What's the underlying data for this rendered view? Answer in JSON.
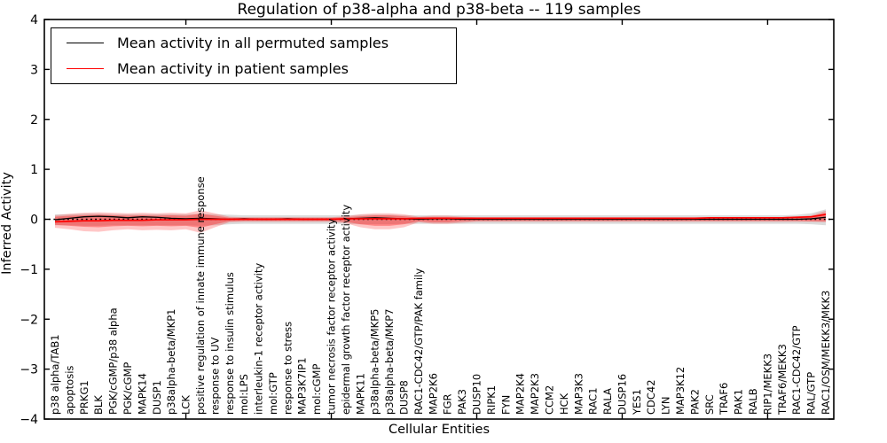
{
  "chart_data": {
    "type": "line",
    "title": "Regulation of p38-alpha and p38-beta -- 119 samples",
    "xlabel": "Cellular Entities",
    "ylabel": "Inferred Activity",
    "ylim": [
      -4,
      4
    ],
    "yticks": [
      -4,
      -3,
      -2,
      -1,
      0,
      1,
      2,
      3,
      4
    ],
    "xtick_indices": [
      9,
      19,
      29,
      39,
      49
    ],
    "grid": false,
    "zero_line": {
      "value": 0,
      "style": "dotted",
      "color": "#000000"
    },
    "categories": [
      "p38 alpha/TAB1",
      "apoptosis",
      "PRKG1",
      "BLK",
      "PGK/cGMP/p38 alpha",
      "PGK/cGMP",
      "MAPK14",
      "DUSP1",
      "p38alpha-beta/MKP1",
      "LCK",
      "positive regulation of innate immune response",
      "response to UV",
      "response to insulin stimulus",
      "mol:LPS",
      "interleukin-1 receptor activity",
      "mol:GTP",
      "response to stress",
      "MAP3K7IP1",
      "mol:cGMP",
      "tumor necrosis factor receptor activity",
      "epidermal growth factor receptor activity",
      "MAPK11",
      "p38alpha-beta/MKP5",
      "p38alpha-beta/MKP7",
      "DUSP8",
      "RAC1-CDC42/GTP/PAK family",
      "MAP2K6",
      "FGR",
      "PAK3",
      "DUSP10",
      "RIPK1",
      "FYN",
      "MAP2K4",
      "MAP2K3",
      "CCM2",
      "HCK",
      "MAP3K3",
      "RAC1",
      "RALA",
      "DUSP16",
      "YES1",
      "CDC42",
      "LYN",
      "MAP3K12",
      "PAK2",
      "SRC",
      "TRAF6",
      "PAK1",
      "RALB",
      "RIP1/MEKK3",
      "TRAF6/MEKK3",
      "RAC1-CDC42/GTP",
      "RAL/GTP",
      "RAC1/OSM/MEKK3/MKK3"
    ],
    "series": [
      {
        "name": "Mean activity in all permuted samples",
        "color": "#000000",
        "values": [
          -0.01,
          0.02,
          0.05,
          0.06,
          0.05,
          0.03,
          0.05,
          0.04,
          0.02,
          0.01,
          0.02,
          0.01,
          0,
          0.01,
          0,
          0,
          0.01,
          0,
          0,
          0,
          0.01,
          0.02,
          0.03,
          0.02,
          0.01,
          0,
          0.01,
          0.01,
          0,
          0,
          0,
          0,
          0,
          0,
          0,
          0,
          0,
          0,
          0,
          0,
          0,
          0,
          0,
          0,
          0,
          0,
          0,
          0,
          0,
          0,
          0,
          0,
          0.01,
          0.04
        ]
      },
      {
        "name": "Mean activity in patient samples",
        "color": "#ff0000",
        "values": [
          -0.05,
          -0.04,
          -0.03,
          -0.03,
          -0.02,
          -0.02,
          -0.02,
          -0.01,
          -0.01,
          -0.01,
          0,
          0,
          0,
          0,
          0,
          0,
          0,
          0,
          0,
          0,
          0.01,
          0.01,
          0.01,
          0.01,
          0.01,
          0.02,
          0.02,
          0.02,
          0.02,
          0.02,
          0.02,
          0.02,
          0.02,
          0.02,
          0.02,
          0.02,
          0.02,
          0.02,
          0.02,
          0.02,
          0.02,
          0.02,
          0.02,
          0.02,
          0.02,
          0.03,
          0.03,
          0.03,
          0.03,
          0.03,
          0.03,
          0.04,
          0.05,
          0.1
        ]
      }
    ],
    "bands": [
      {
        "name": "permuted-sample-spread",
        "color": "rgba(0,0,0,0.14)",
        "upper": [
          0.1,
          0.1,
          0.11,
          0.11,
          0.1,
          0.1,
          0.1,
          0.1,
          0.1,
          0.1,
          0.11,
          0.1,
          0.09,
          0.08,
          0.08,
          0.08,
          0.08,
          0.08,
          0.08,
          0.08,
          0.08,
          0.09,
          0.09,
          0.09,
          0.08,
          0.08,
          0.08,
          0.08,
          0.08,
          0.08,
          0.08,
          0.08,
          0.08,
          0.08,
          0.08,
          0.08,
          0.08,
          0.08,
          0.08,
          0.08,
          0.08,
          0.08,
          0.08,
          0.08,
          0.08,
          0.08,
          0.08,
          0.08,
          0.08,
          0.08,
          0.08,
          0.09,
          0.12,
          0.2
        ],
        "lower": [
          -0.12,
          -0.12,
          -0.13,
          -0.13,
          -0.12,
          -0.12,
          -0.12,
          -0.12,
          -0.12,
          -0.12,
          -0.13,
          -0.12,
          -0.1,
          -0.09,
          -0.09,
          -0.09,
          -0.09,
          -0.09,
          -0.09,
          -0.09,
          -0.09,
          -0.1,
          -0.1,
          -0.1,
          -0.09,
          -0.09,
          -0.09,
          -0.09,
          -0.09,
          -0.09,
          -0.09,
          -0.09,
          -0.09,
          -0.09,
          -0.09,
          -0.09,
          -0.09,
          -0.09,
          -0.09,
          -0.09,
          -0.09,
          -0.09,
          -0.09,
          -0.09,
          -0.09,
          -0.09,
          -0.09,
          -0.09,
          -0.09,
          -0.09,
          -0.09,
          -0.09,
          -0.1,
          -0.12
        ]
      },
      {
        "name": "patient-sample-spread-outer",
        "color": "rgba(255,30,30,0.25)",
        "upper": [
          0.08,
          0.11,
          0.13,
          0.14,
          0.13,
          0.12,
          0.13,
          0.12,
          0.13,
          0.12,
          0.18,
          0.12,
          0.05,
          0.04,
          0.04,
          0.04,
          0.04,
          0.04,
          0.04,
          0.04,
          0.06,
          0.1,
          0.12,
          0.12,
          0.1,
          0.05,
          0.07,
          0.07,
          0.05,
          0.04,
          0.04,
          0.04,
          0.04,
          0.04,
          0.04,
          0.04,
          0.04,
          0.04,
          0.04,
          0.04,
          0.04,
          0.04,
          0.04,
          0.04,
          0.04,
          0.04,
          0.04,
          0.04,
          0.04,
          0.04,
          0.04,
          0.05,
          0.08,
          0.17
        ],
        "lower": [
          -0.17,
          -0.2,
          -0.24,
          -0.25,
          -0.22,
          -0.2,
          -0.22,
          -0.21,
          -0.22,
          -0.2,
          -0.27,
          -0.16,
          -0.06,
          -0.05,
          -0.05,
          -0.05,
          -0.05,
          -0.05,
          -0.05,
          -0.05,
          -0.08,
          -0.16,
          -0.2,
          -0.2,
          -0.16,
          -0.06,
          -0.09,
          -0.09,
          -0.07,
          -0.05,
          -0.05,
          -0.05,
          -0.05,
          -0.05,
          -0.05,
          -0.05,
          -0.05,
          -0.05,
          -0.05,
          -0.05,
          -0.05,
          -0.05,
          -0.05,
          -0.05,
          -0.05,
          -0.05,
          -0.05,
          -0.05,
          -0.05,
          -0.05,
          -0.05,
          -0.05,
          -0.05,
          -0.06
        ]
      },
      {
        "name": "patient-sample-spread-inner",
        "color": "rgba(255,30,30,0.38)",
        "upper": [
          0.05,
          0.07,
          0.08,
          0.09,
          0.08,
          0.07,
          0.08,
          0.07,
          0.08,
          0.07,
          0.11,
          0.07,
          0.03,
          0.03,
          0.03,
          0.03,
          0.03,
          0.03,
          0.03,
          0.03,
          0.04,
          0.06,
          0.08,
          0.08,
          0.06,
          0.03,
          0.04,
          0.04,
          0.03,
          0.03,
          0.03,
          0.03,
          0.03,
          0.03,
          0.03,
          0.03,
          0.03,
          0.03,
          0.03,
          0.03,
          0.03,
          0.03,
          0.03,
          0.03,
          0.03,
          0.03,
          0.03,
          0.03,
          0.03,
          0.03,
          0.03,
          0.03,
          0.05,
          0.12
        ],
        "lower": [
          -0.11,
          -0.13,
          -0.15,
          -0.16,
          -0.14,
          -0.13,
          -0.14,
          -0.13,
          -0.14,
          -0.13,
          -0.17,
          -0.1,
          -0.04,
          -0.03,
          -0.03,
          -0.03,
          -0.03,
          -0.03,
          -0.03,
          -0.03,
          -0.05,
          -0.1,
          -0.13,
          -0.13,
          -0.1,
          -0.04,
          -0.06,
          -0.06,
          -0.04,
          -0.03,
          -0.03,
          -0.03,
          -0.03,
          -0.03,
          -0.03,
          -0.03,
          -0.03,
          -0.03,
          -0.03,
          -0.03,
          -0.03,
          -0.03,
          -0.03,
          -0.03,
          -0.03,
          -0.03,
          -0.03,
          -0.03,
          -0.03,
          -0.03,
          -0.03,
          -0.03,
          -0.04,
          -0.04
        ]
      }
    ],
    "legend": {
      "position": "upper-left",
      "entries": [
        {
          "label": "Mean activity in all permuted samples",
          "color": "#000000"
        },
        {
          "label": "Mean activity in patient samples",
          "color": "#ff0000"
        }
      ]
    }
  }
}
